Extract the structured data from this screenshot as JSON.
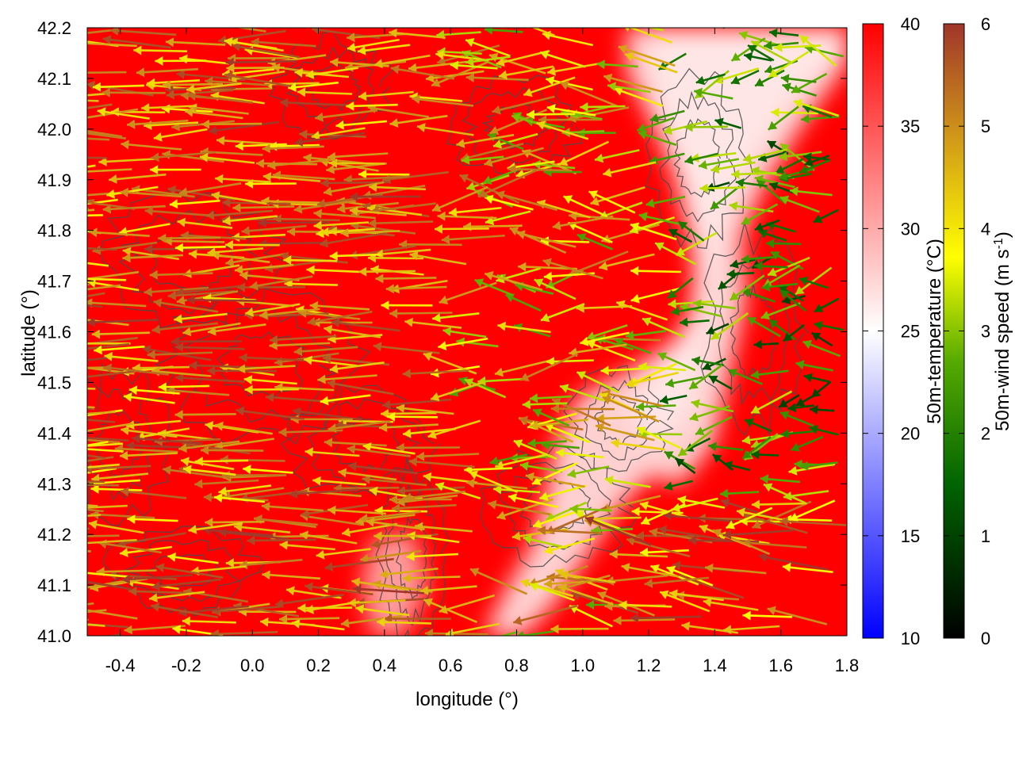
{
  "chart_data": {
    "type": "heatmap",
    "title": "",
    "xlabel": "longitude (°)",
    "ylabel": "latitude (°)",
    "xlim": [
      -0.5,
      1.8
    ],
    "ylim": [
      41.0,
      42.2
    ],
    "x_ticks": [
      "-0.4",
      "-0.2",
      "0.0",
      "0.2",
      "0.4",
      "0.6",
      "0.8",
      "1.0",
      "1.2",
      "1.4",
      "1.6",
      "1.8"
    ],
    "y_ticks": [
      "41.0",
      "41.1",
      "41.2",
      "41.3",
      "41.4",
      "41.5",
      "41.6",
      "41.7",
      "41.8",
      "41.9",
      "42.0",
      "42.1",
      "42.2"
    ],
    "grid": false,
    "overlays": [
      "wind vectors (arrows colored by speed)",
      "terrain contour lines"
    ],
    "colorbars": [
      {
        "name": "temperature",
        "label_main": "50m-temperature (°C)",
        "range": [
          10,
          40
        ],
        "ticks": [
          "10",
          "15",
          "20",
          "25",
          "30",
          "35",
          "40"
        ],
        "colors": [
          "#0000ff",
          "#ffffff",
          "#ff0000"
        ]
      },
      {
        "name": "wind-speed",
        "label_main": "50m-wind speed (m s",
        "label_sup": "-1",
        "label_end": ")",
        "range": [
          0,
          6
        ],
        "ticks": [
          "0",
          "1",
          "2",
          "3",
          "4",
          "5",
          "6"
        ],
        "colors": [
          "#000000",
          "#006400",
          "#55aa00",
          "#ffff00",
          "#d4a017",
          "#b8860b",
          "#a0352a"
        ]
      }
    ],
    "field_description": "Mostly hot (~38-40 °C) in the west; cooler (~28-32 °C) zone east of lon 0.8 extending north-east to 42.2°N",
    "wind_pattern": "Predominantly westward (easterly) flow; stronger (4-6 m/s) in the west and south-east, weaker (1-3 m/s) in the north-east"
  },
  "colors": {
    "hot": "#ff0000",
    "cool_patch": "#ffd8d8",
    "contour": "#555555"
  }
}
